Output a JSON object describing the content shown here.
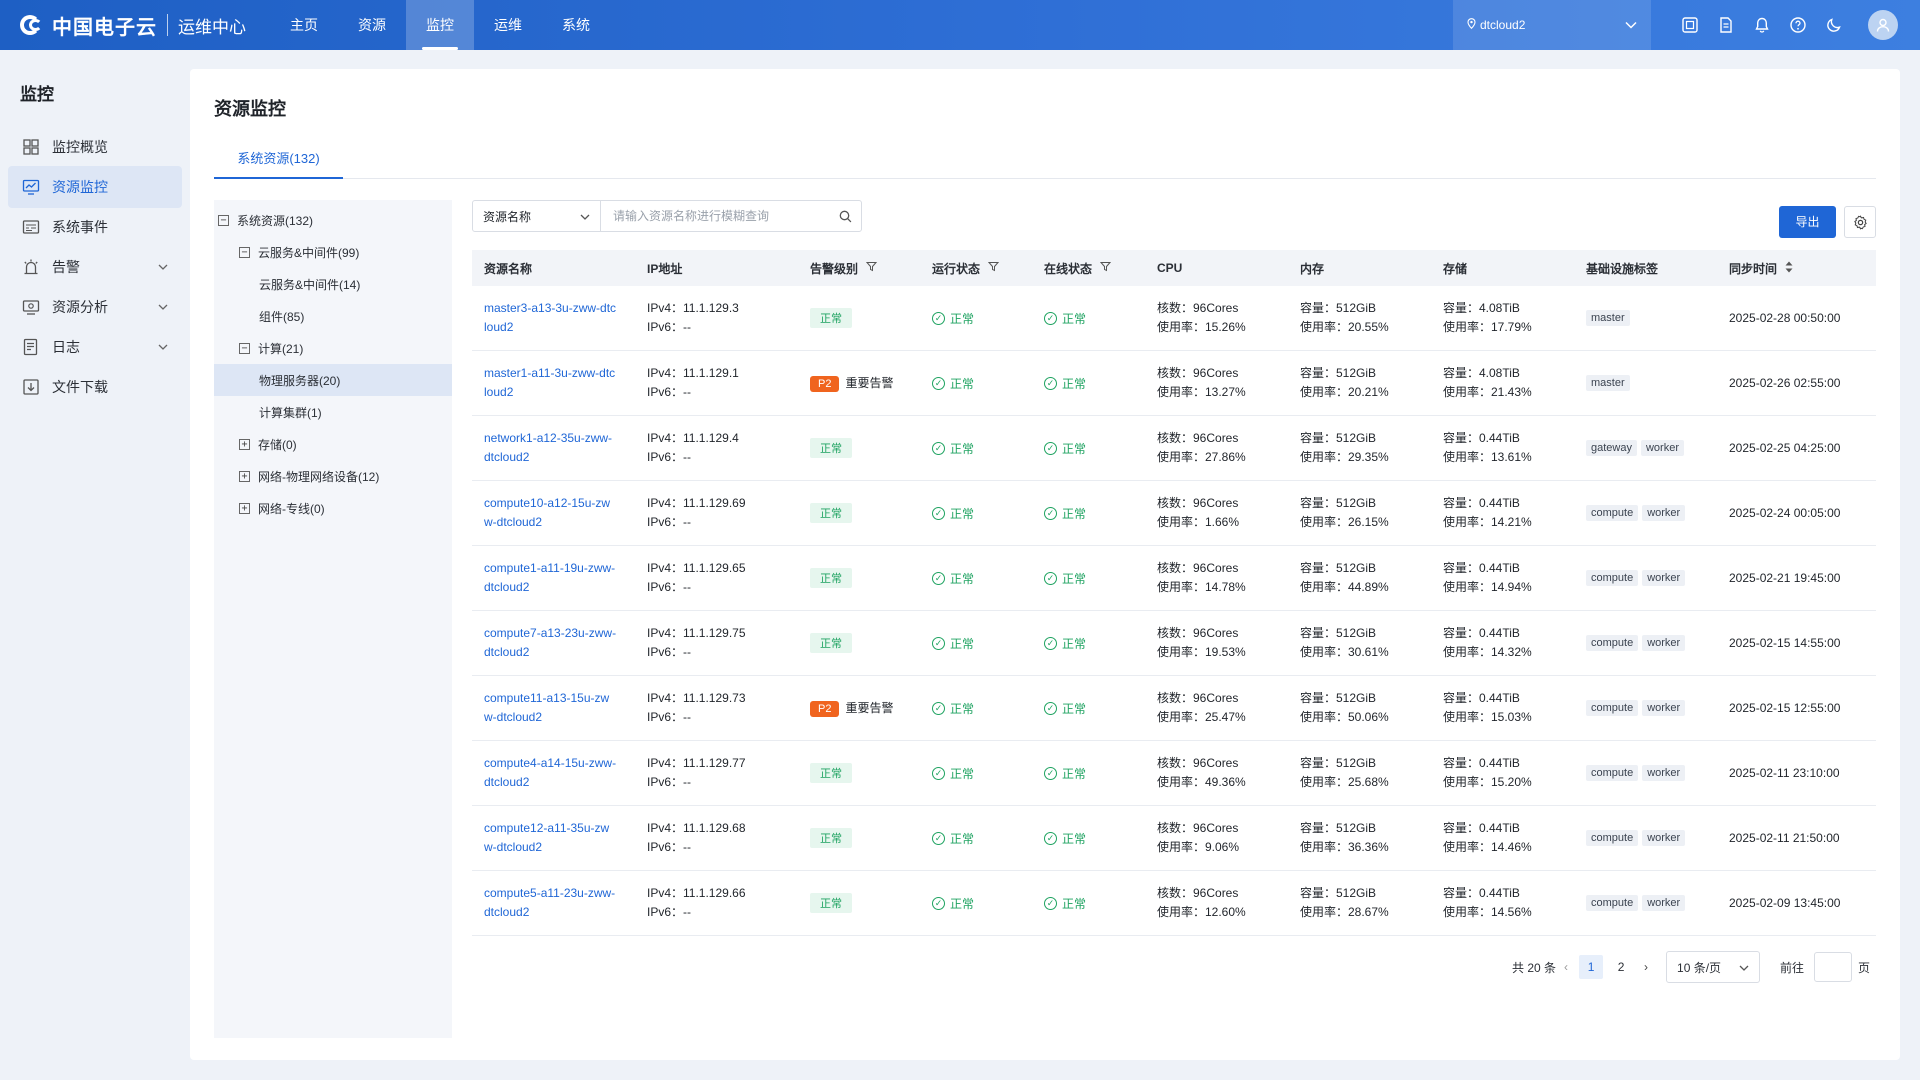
{
  "header": {
    "brand": "中国电子云",
    "subtitle": "运维中心",
    "nav": [
      "主页",
      "资源",
      "监控",
      "运维",
      "系统"
    ],
    "region": "dtcloud2"
  },
  "sidebar": {
    "title": "监控",
    "items": [
      {
        "label": "监控概览",
        "icon": "grid-icon"
      },
      {
        "label": "资源监控",
        "icon": "monitor-icon"
      },
      {
        "label": "系统事件",
        "icon": "event-icon"
      },
      {
        "label": "告警",
        "icon": "alarm-icon"
      },
      {
        "label": "资源分析",
        "icon": "analysis-icon"
      },
      {
        "label": "日志",
        "icon": "log-icon"
      },
      {
        "label": "文件下载",
        "icon": "download-icon"
      }
    ]
  },
  "page": {
    "title": "资源监控",
    "tab": "系统资源(132)"
  },
  "tree": [
    {
      "label": "系统资源(132)",
      "box": "−"
    },
    {
      "label": "云服务&中间件(99)",
      "box": "−"
    },
    {
      "label": "云服务&中间件(14)",
      "box": ""
    },
    {
      "label": "组件(85)",
      "box": ""
    },
    {
      "label": "计算(21)",
      "box": "−"
    },
    {
      "label": "物理服务器(20)",
      "box": ""
    },
    {
      "label": "计算集群(1)",
      "box": ""
    },
    {
      "label": "存储(0)",
      "box": "+"
    },
    {
      "label": "网络-物理网络设备(12)",
      "box": "+"
    },
    {
      "label": "网络-专线(0)",
      "box": "+"
    }
  ],
  "search": {
    "field": "资源名称",
    "placeholder": "请输入资源名称进行模糊查询"
  },
  "toolbar": {
    "export": "导出"
  },
  "table": {
    "columns": [
      "资源名称",
      "IP地址",
      "告警级别",
      "运行状态",
      "在线状态",
      "CPU",
      "内存",
      "存储",
      "基础设施标签",
      "同步时间"
    ],
    "rows": [
      {
        "name1": "master3-a13-3u-zww-dtc",
        "name2": "loud2",
        "ipv4": "IPv4：11.1.129.3",
        "ipv6": "IPv6：--",
        "alarm": "正常",
        "alarmText": "",
        "run": "正常",
        "online": "正常",
        "cpu1": "核数：96Cores",
        "cpu2": "使用率：15.26%",
        "mem1": "容量：512GiB",
        "mem2": "使用率：20.55%",
        "sto1": "容量：4.08TiB",
        "sto2": "使用率：17.79%",
        "tags": [
          "master"
        ],
        "time": "2025-02-28 00:50:00"
      },
      {
        "name1": "master1-a11-3u-zww-dtc",
        "name2": "loud2",
        "ipv4": "IPv4：11.1.129.1",
        "ipv6": "IPv6：--",
        "alarm": "P2",
        "alarmText": "重要告警",
        "run": "正常",
        "online": "正常",
        "cpu1": "核数：96Cores",
        "cpu2": "使用率：13.27%",
        "mem1": "容量：512GiB",
        "mem2": "使用率：20.21%",
        "sto1": "容量：4.08TiB",
        "sto2": "使用率：21.43%",
        "tags": [
          "master"
        ],
        "time": "2025-02-26 02:55:00"
      },
      {
        "name1": "network1-a12-35u-zww-",
        "name2": "dtcloud2",
        "ipv4": "IPv4：11.1.129.4",
        "ipv6": "IPv6：--",
        "alarm": "正常",
        "alarmText": "",
        "run": "正常",
        "online": "正常",
        "cpu1": "核数：96Cores",
        "cpu2": "使用率：27.86%",
        "mem1": "容量：512GiB",
        "mem2": "使用率：29.35%",
        "sto1": "容量：0.44TiB",
        "sto2": "使用率：13.61%",
        "tags": [
          "gateway",
          "worker"
        ],
        "time": "2025-02-25 04:25:00"
      },
      {
        "name1": "compute10-a12-15u-zw",
        "name2": "w-dtcloud2",
        "ipv4": "IPv4：11.1.129.69",
        "ipv6": "IPv6：--",
        "alarm": "正常",
        "alarmText": "",
        "run": "正常",
        "online": "正常",
        "cpu1": "核数：96Cores",
        "cpu2": "使用率：1.66%",
        "mem1": "容量：512GiB",
        "mem2": "使用率：26.15%",
        "sto1": "容量：0.44TiB",
        "sto2": "使用率：14.21%",
        "tags": [
          "compute",
          "worker"
        ],
        "time": "2025-02-24 00:05:00"
      },
      {
        "name1": "compute1-a11-19u-zww-",
        "name2": "dtcloud2",
        "ipv4": "IPv4：11.1.129.65",
        "ipv6": "IPv6：--",
        "alarm": "正常",
        "alarmText": "",
        "run": "正常",
        "online": "正常",
        "cpu1": "核数：96Cores",
        "cpu2": "使用率：14.78%",
        "mem1": "容量：512GiB",
        "mem2": "使用率：44.89%",
        "sto1": "容量：0.44TiB",
        "sto2": "使用率：14.94%",
        "tags": [
          "compute",
          "worker"
        ],
        "time": "2025-02-21 19:45:00"
      },
      {
        "name1": "compute7-a13-23u-zww-",
        "name2": "dtcloud2",
        "ipv4": "IPv4：11.1.129.75",
        "ipv6": "IPv6：--",
        "alarm": "正常",
        "alarmText": "",
        "run": "正常",
        "online": "正常",
        "cpu1": "核数：96Cores",
        "cpu2": "使用率：19.53%",
        "mem1": "容量：512GiB",
        "mem2": "使用率：30.61%",
        "sto1": "容量：0.44TiB",
        "sto2": "使用率：14.32%",
        "tags": [
          "compute",
          "worker"
        ],
        "time": "2025-02-15 14:55:00"
      },
      {
        "name1": "compute11-a13-15u-zw",
        "name2": "w-dtcloud2",
        "ipv4": "IPv4：11.1.129.73",
        "ipv6": "IPv6：--",
        "alarm": "P2",
        "alarmText": "重要告警",
        "run": "正常",
        "online": "正常",
        "cpu1": "核数：96Cores",
        "cpu2": "使用率：25.47%",
        "mem1": "容量：512GiB",
        "mem2": "使用率：50.06%",
        "sto1": "容量：0.44TiB",
        "sto2": "使用率：15.03%",
        "tags": [
          "compute",
          "worker"
        ],
        "time": "2025-02-15 12:55:00"
      },
      {
        "name1": "compute4-a14-15u-zww-",
        "name2": "dtcloud2",
        "ipv4": "IPv4：11.1.129.77",
        "ipv6": "IPv6：--",
        "alarm": "正常",
        "alarmText": "",
        "run": "正常",
        "online": "正常",
        "cpu1": "核数：96Cores",
        "cpu2": "使用率：49.36%",
        "mem1": "容量：512GiB",
        "mem2": "使用率：25.68%",
        "sto1": "容量：0.44TiB",
        "sto2": "使用率：15.20%",
        "tags": [
          "compute",
          "worker"
        ],
        "time": "2025-02-11 23:10:00"
      },
      {
        "name1": "compute12-a11-35u-zw",
        "name2": "w-dtcloud2",
        "ipv4": "IPv4：11.1.129.68",
        "ipv6": "IPv6：--",
        "alarm": "正常",
        "alarmText": "",
        "run": "正常",
        "online": "正常",
        "cpu1": "核数：96Cores",
        "cpu2": "使用率：9.06%",
        "mem1": "容量：512GiB",
        "mem2": "使用率：36.36%",
        "sto1": "容量：0.44TiB",
        "sto2": "使用率：14.46%",
        "tags": [
          "compute",
          "worker"
        ],
        "time": "2025-02-11 21:50:00"
      },
      {
        "name1": "compute5-a11-23u-zww-",
        "name2": "dtcloud2",
        "ipv4": "IPv4：11.1.129.66",
        "ipv6": "IPv6：--",
        "alarm": "正常",
        "alarmText": "",
        "run": "正常",
        "online": "正常",
        "cpu1": "核数：96Cores",
        "cpu2": "使用率：12.60%",
        "mem1": "容量：512GiB",
        "mem2": "使用率：28.67%",
        "sto1": "容量：0.44TiB",
        "sto2": "使用率：14.56%",
        "tags": [
          "compute",
          "worker"
        ],
        "time": "2025-02-09 13:45:00"
      }
    ]
  },
  "pagination": {
    "total": "共 20 条",
    "pages": [
      "1",
      "2"
    ],
    "pageSize": "10 条/页",
    "goto": "前往",
    "pageUnit": "页"
  },
  "colors": {
    "primary": "#1f66d6",
    "success": "#1fa361",
    "warning": "#f0641e"
  }
}
